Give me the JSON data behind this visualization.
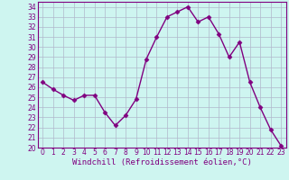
{
  "x": [
    0,
    1,
    2,
    3,
    4,
    5,
    6,
    7,
    8,
    9,
    10,
    11,
    12,
    13,
    14,
    15,
    16,
    17,
    18,
    19,
    20,
    21,
    22,
    23
  ],
  "y": [
    26.5,
    25.8,
    25.2,
    24.7,
    25.2,
    25.2,
    23.5,
    22.2,
    23.2,
    24.8,
    28.8,
    31.0,
    33.0,
    33.5,
    34.0,
    32.5,
    33.0,
    31.3,
    29.0,
    30.5,
    26.5,
    24.0,
    21.8,
    20.2
  ],
  "line_color": "#800080",
  "marker": "D",
  "marker_size": 2.5,
  "bg_color": "#cef5f0",
  "grid_color": "#b0b8cc",
  "xlabel": "Windchill (Refroidissement éolien,°C)",
  "ylim": [
    20,
    34.5
  ],
  "xlim": [
    -0.5,
    23.5
  ],
  "yticks": [
    20,
    21,
    22,
    23,
    24,
    25,
    26,
    27,
    28,
    29,
    30,
    31,
    32,
    33,
    34
  ],
  "xticks": [
    0,
    1,
    2,
    3,
    4,
    5,
    6,
    7,
    8,
    9,
    10,
    11,
    12,
    13,
    14,
    15,
    16,
    17,
    18,
    19,
    20,
    21,
    22,
    23
  ],
  "tick_fontsize": 5.5,
  "label_fontsize": 6.5,
  "line_width": 1.0
}
